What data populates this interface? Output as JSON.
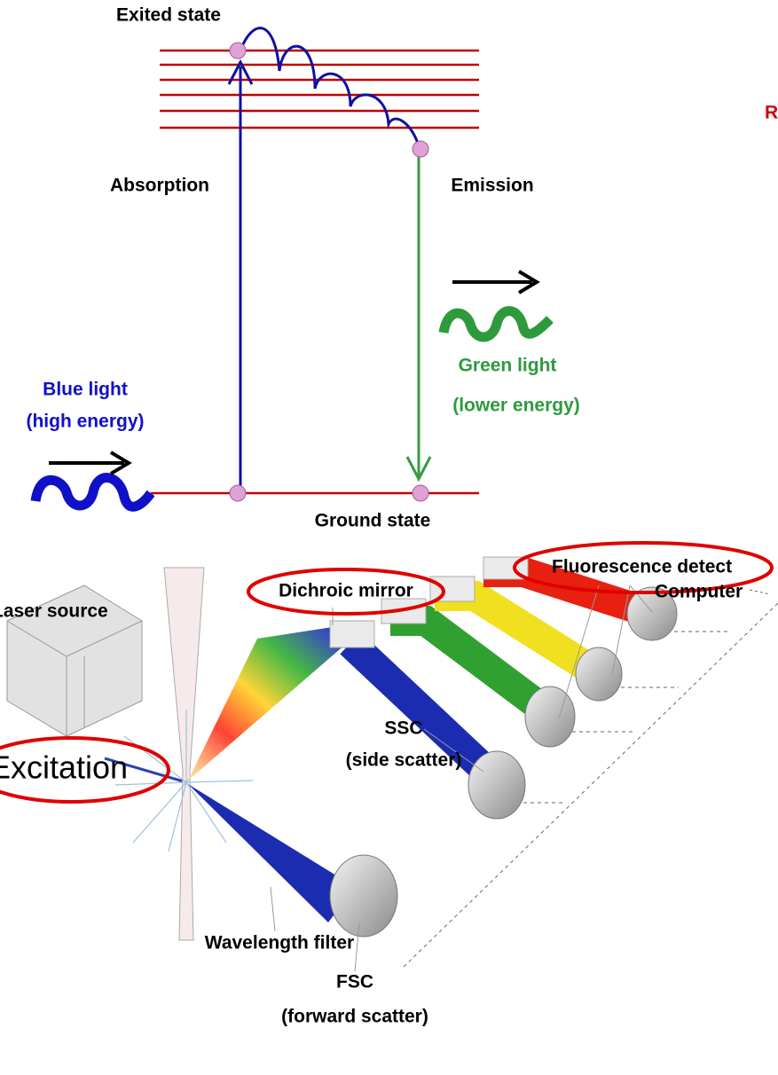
{
  "energy_diagram": {
    "excited_state": "Exited state",
    "absorption": "Absorption",
    "emission": "Emission",
    "blue_light": [
      "Blue light",
      "(high energy)"
    ],
    "green_light": [
      "Green light",
      "(lower energy)"
    ],
    "ground_state": "Ground state",
    "side_label": "R"
  },
  "cytometer": {
    "fluorescence_detector": "Fluorescence detect",
    "dichroic_mirror": "Dichroic mirror",
    "computer": "Computer",
    "laser_source": "Laser source",
    "excitation": "Excitation",
    "ssc": [
      "SSC",
      "(side scatter)"
    ],
    "wavelength_filter": "Wavelength filter",
    "fsc": [
      "FSC",
      "(forward scatter)"
    ]
  }
}
